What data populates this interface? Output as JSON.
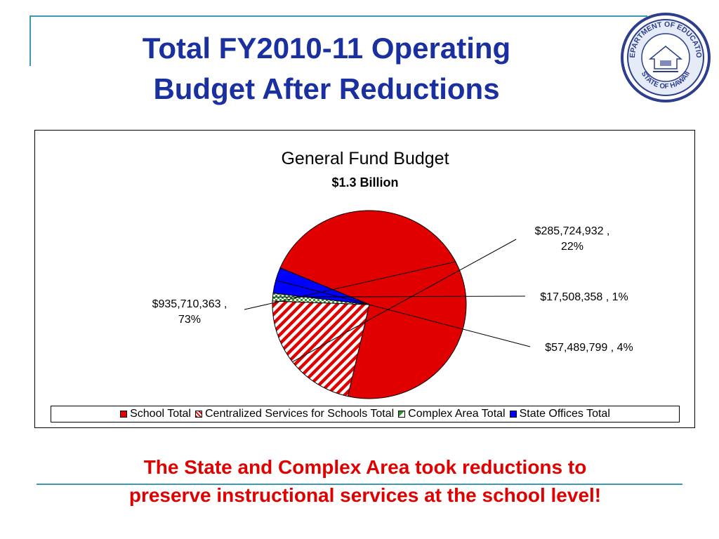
{
  "slide": {
    "title_line1": "Total FY2010-11 Operating",
    "title_line2": "Budget After Reductions",
    "footer_line1": "The State and Complex Area took reductions to",
    "footer_line2": "preserve instructional services at the school level!",
    "title_color": "#1a2fa0",
    "footer_color": "#e00000",
    "accent_color": "#3a9ab0"
  },
  "seal": {
    "text_top": "DEPARTMENT OF EDUCATION",
    "text_bottom": "STATE OF HAWAII",
    "icon": "seal-icon"
  },
  "chart_data": {
    "type": "pie",
    "title": "General Fund Budget",
    "subtitle": "$1.3 Billion",
    "legend_position": "bottom",
    "series": [
      {
        "name": "School Total",
        "value": 935710363,
        "percent": 73,
        "label_line1": "$935,710,363 ,",
        "label_line2": "73%",
        "color": "#e00000",
        "pattern": "solid"
      },
      {
        "name": "Centralized Services for Schools Total",
        "value": 285724932,
        "percent": 22,
        "label_line1": "$285,724,932 ,",
        "label_line2": "22%",
        "color": "#e00000",
        "pattern": "diagonal-stripes"
      },
      {
        "name": "Complex Area Total",
        "value": 17508358,
        "percent": 1,
        "label_line1": "$17,508,358 , 1%",
        "label_line2": "",
        "color": "#2a9a2a",
        "pattern": "checker"
      },
      {
        "name": "State Offices Total",
        "value": 57489799,
        "percent": 4,
        "label_line1": "$57,489,799 , 4%",
        "label_line2": "",
        "color": "#0000ff",
        "pattern": "solid"
      }
    ]
  }
}
